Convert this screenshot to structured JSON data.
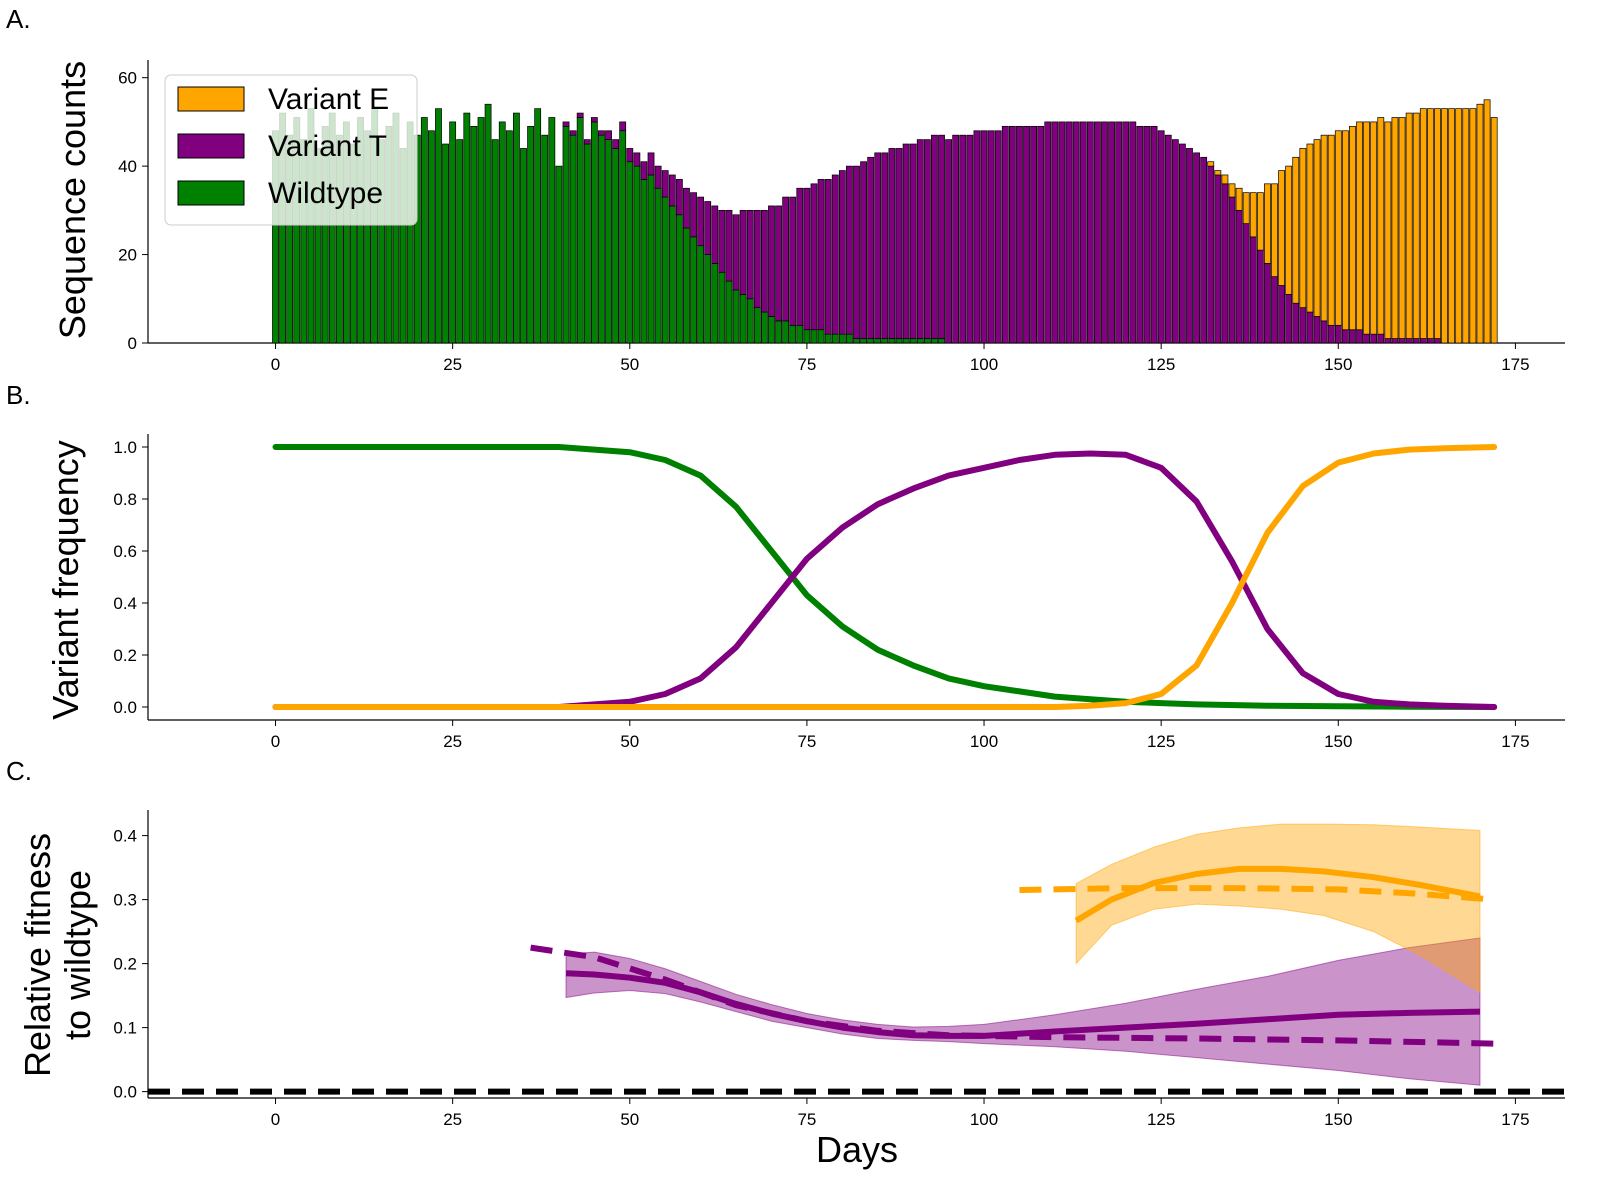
{
  "colors": {
    "variant_e": "#ffa500",
    "variant_t": "#800080",
    "wildtype": "#008000",
    "baseline": "#000000"
  },
  "chart_data": [
    {
      "panel_label": "A.",
      "type": "bar",
      "stacked": true,
      "ylabel": "Sequence counts",
      "xlim": [
        -18,
        182
      ],
      "ylim": [
        0,
        64
      ],
      "xticks": [
        0,
        25,
        50,
        75,
        100,
        125,
        150,
        175
      ],
      "yticks": [
        0,
        20,
        40,
        60
      ],
      "legend": {
        "position": "top-left",
        "entries": [
          "Variant E",
          "Variant T",
          "Wildtype"
        ]
      },
      "x": [
        0,
        1,
        2,
        3,
        4,
        5,
        6,
        7,
        8,
        9,
        10,
        11,
        12,
        13,
        14,
        15,
        16,
        17,
        18,
        19,
        20,
        21,
        22,
        23,
        24,
        25,
        26,
        27,
        28,
        29,
        30,
        31,
        32,
        33,
        34,
        35,
        36,
        37,
        38,
        39,
        40,
        41,
        42,
        43,
        44,
        45,
        46,
        47,
        48,
        49,
        50,
        51,
        52,
        53,
        54,
        55,
        56,
        57,
        58,
        59,
        60,
        61,
        62,
        63,
        64,
        65,
        66,
        67,
        68,
        69,
        70,
        71,
        72,
        73,
        74,
        75,
        76,
        77,
        78,
        79,
        80,
        81,
        82,
        83,
        84,
        85,
        86,
        87,
        88,
        89,
        90,
        91,
        92,
        93,
        94,
        95,
        96,
        97,
        98,
        99,
        100,
        101,
        102,
        103,
        104,
        105,
        106,
        107,
        108,
        109,
        110,
        111,
        112,
        113,
        114,
        115,
        116,
        117,
        118,
        119,
        120,
        121,
        122,
        123,
        124,
        125,
        126,
        127,
        128,
        129,
        130,
        131,
        132,
        133,
        134,
        135,
        136,
        137,
        138,
        139,
        140,
        141,
        142,
        143,
        144,
        145,
        146,
        147,
        148,
        149,
        150,
        151,
        152,
        153,
        154,
        155,
        156,
        157,
        158,
        159,
        160,
        161,
        162,
        163,
        164,
        165,
        166,
        167,
        168,
        169,
        170,
        171,
        172
      ],
      "series": [
        {
          "name": "Variant E",
          "values": [
            0,
            0,
            0,
            0,
            0,
            0,
            0,
            0,
            0,
            0,
            0,
            0,
            0,
            0,
            0,
            0,
            0,
            0,
            0,
            0,
            0,
            0,
            0,
            0,
            0,
            0,
            0,
            0,
            0,
            0,
            0,
            0,
            0,
            0,
            0,
            0,
            0,
            0,
            0,
            0,
            0,
            0,
            0,
            0,
            0,
            0,
            0,
            0,
            0,
            0,
            0,
            0,
            0,
            0,
            0,
            0,
            0,
            0,
            0,
            0,
            0,
            0,
            0,
            0,
            0,
            0,
            0,
            0,
            0,
            0,
            0,
            0,
            0,
            0,
            0,
            0,
            0,
            0,
            0,
            0,
            0,
            0,
            0,
            0,
            0,
            0,
            0,
            0,
            0,
            0,
            0,
            0,
            0,
            0,
            0,
            0,
            0,
            0,
            0,
            0,
            0,
            0,
            0,
            0,
            0,
            0,
            0,
            0,
            0,
            0,
            0,
            0,
            0,
            0,
            0,
            0,
            0,
            0,
            0,
            0,
            0,
            0,
            0,
            0,
            0,
            0,
            0,
            0,
            0,
            0,
            0,
            0,
            1,
            1,
            2,
            3,
            5,
            7,
            10,
            13,
            18,
            21,
            26,
            29,
            33,
            36,
            38,
            40,
            42,
            43,
            44,
            45,
            46,
            47,
            48,
            48,
            49,
            49,
            50,
            50,
            51,
            51,
            52,
            52,
            52,
            53,
            53,
            53,
            53,
            53,
            54,
            55,
            51
          ]
        },
        {
          "name": "Variant T",
          "values": [
            0,
            0,
            0,
            0,
            0,
            0,
            0,
            0,
            0,
            0,
            0,
            0,
            0,
            0,
            0,
            0,
            0,
            0,
            0,
            0,
            0,
            0,
            0,
            0,
            0,
            0,
            0,
            0,
            0,
            0,
            0,
            0,
            0,
            0,
            0,
            0,
            0,
            0,
            0,
            0,
            0,
            1,
            1,
            1,
            1,
            1,
            1,
            2,
            2,
            2,
            3,
            3,
            4,
            5,
            5,
            6,
            7,
            8,
            9,
            10,
            11,
            12,
            13,
            14,
            16,
            17,
            19,
            20,
            22,
            23,
            25,
            26,
            28,
            29,
            31,
            32,
            33,
            34,
            35,
            36,
            37,
            38,
            39,
            40,
            41,
            42,
            42,
            43,
            43,
            44,
            44,
            45,
            45,
            46,
            46,
            46,
            47,
            47,
            47,
            48,
            48,
            48,
            48,
            49,
            49,
            49,
            49,
            49,
            49,
            50,
            50,
            50,
            50,
            50,
            50,
            50,
            50,
            50,
            50,
            50,
            50,
            50,
            49,
            49,
            49,
            48,
            47,
            46,
            45,
            44,
            43,
            42,
            40,
            38,
            36,
            33,
            30,
            27,
            24,
            21,
            18,
            15,
            13,
            11,
            9,
            8,
            7,
            6,
            5,
            4,
            4,
            3,
            3,
            3,
            2,
            2,
            2,
            1,
            1,
            1,
            1,
            1,
            1,
            1,
            1,
            0,
            0,
            0,
            0,
            0,
            0,
            0,
            0
          ]
        },
        {
          "name": "Wildtype",
          "values": [
            48,
            52,
            47,
            51,
            46,
            53,
            44,
            49,
            52,
            47,
            50,
            45,
            51,
            48,
            53,
            46,
            49,
            52,
            44,
            50,
            47,
            51,
            48,
            53,
            45,
            50,
            46,
            52,
            49,
            51,
            54,
            46,
            50,
            48,
            52,
            44,
            49,
            53,
            47,
            51,
            40,
            49,
            47,
            51,
            45,
            50,
            47,
            46,
            44,
            48,
            41,
            40,
            37,
            38,
            35,
            33,
            31,
            29,
            26,
            24,
            22,
            20,
            18,
            16,
            14,
            12,
            11,
            10,
            8,
            7,
            6,
            5,
            5,
            4,
            4,
            3,
            3,
            3,
            2,
            2,
            2,
            2,
            1,
            1,
            1,
            1,
            1,
            1,
            1,
            1,
            1,
            1,
            1,
            1,
            1,
            0,
            0,
            0,
            0,
            0,
            0,
            0,
            0,
            0,
            0,
            0,
            0,
            0,
            0,
            0,
            0,
            0,
            0,
            0,
            0,
            0,
            0,
            0,
            0,
            0,
            0,
            0,
            0,
            0,
            0,
            0,
            0,
            0,
            0,
            0,
            0,
            0,
            0,
            0,
            0,
            0,
            0,
            0,
            0,
            0,
            0,
            0,
            0,
            0,
            0,
            0,
            0,
            0,
            0,
            0,
            0,
            0,
            0,
            0,
            0,
            0,
            0,
            0,
            0,
            0,
            0,
            0,
            0,
            0,
            0,
            0,
            0,
            0,
            0,
            0,
            0,
            0,
            0
          ]
        }
      ]
    },
    {
      "panel_label": "B.",
      "type": "line",
      "ylabel": "Variant frequency",
      "xlim": [
        -18,
        182
      ],
      "ylim": [
        -0.05,
        1.05
      ],
      "xticks": [
        0,
        25,
        50,
        75,
        100,
        125,
        150,
        175
      ],
      "yticks": [
        0.0,
        0.2,
        0.4,
        0.6,
        0.8,
        1.0
      ],
      "series": [
        {
          "color_key": "wildtype",
          "x": [
            0,
            20,
            40,
            45,
            50,
            55,
            60,
            65,
            70,
            75,
            80,
            85,
            90,
            95,
            100,
            105,
            110,
            115,
            120,
            125,
            130,
            140,
            150,
            160,
            172
          ],
          "values": [
            1.0,
            1.0,
            1.0,
            0.99,
            0.98,
            0.95,
            0.89,
            0.77,
            0.6,
            0.43,
            0.31,
            0.22,
            0.16,
            0.11,
            0.08,
            0.06,
            0.04,
            0.03,
            0.02,
            0.015,
            0.01,
            0.005,
            0.003,
            0.001,
            0.0
          ]
        },
        {
          "color_key": "variant_t",
          "x": [
            0,
            20,
            40,
            45,
            50,
            55,
            60,
            65,
            70,
            75,
            80,
            85,
            90,
            95,
            100,
            105,
            110,
            115,
            120,
            125,
            130,
            135,
            140,
            145,
            150,
            155,
            160,
            165,
            172
          ],
          "values": [
            0.0,
            0.0,
            0.0,
            0.01,
            0.02,
            0.05,
            0.11,
            0.23,
            0.4,
            0.57,
            0.69,
            0.78,
            0.84,
            0.89,
            0.92,
            0.95,
            0.97,
            0.975,
            0.97,
            0.92,
            0.79,
            0.56,
            0.3,
            0.13,
            0.05,
            0.02,
            0.01,
            0.005,
            0.0
          ]
        },
        {
          "color_key": "variant_e",
          "x": [
            0,
            40,
            80,
            110,
            115,
            120,
            125,
            130,
            135,
            140,
            145,
            150,
            155,
            160,
            165,
            172
          ],
          "values": [
            0.0,
            0.0,
            0.0,
            0.0,
            0.005,
            0.015,
            0.05,
            0.16,
            0.4,
            0.67,
            0.85,
            0.94,
            0.975,
            0.99,
            0.995,
            1.0
          ]
        }
      ]
    },
    {
      "panel_label": "C.",
      "type": "line",
      "ylabel": "Relative fitness to wildtype",
      "xlabel": "Days",
      "xlim": [
        -18,
        182
      ],
      "ylim": [
        -0.01,
        0.44
      ],
      "xticks": [
        0,
        25,
        50,
        75,
        100,
        125,
        150,
        175
      ],
      "yticks": [
        0.0,
        0.1,
        0.2,
        0.3,
        0.4
      ],
      "series": [
        {
          "color_key": "variant_t",
          "style": "solid",
          "x": [
            41,
            45,
            50,
            55,
            60,
            65,
            70,
            75,
            80,
            85,
            90,
            95,
            100,
            110,
            120,
            130,
            140,
            150,
            160,
            170
          ],
          "values": [
            0.185,
            0.183,
            0.178,
            0.17,
            0.155,
            0.137,
            0.122,
            0.11,
            0.1,
            0.093,
            0.088,
            0.087,
            0.087,
            0.094,
            0.1,
            0.106,
            0.113,
            0.12,
            0.123,
            0.125
          ],
          "band_low": [
            0.147,
            0.154,
            0.158,
            0.153,
            0.14,
            0.125,
            0.11,
            0.1,
            0.09,
            0.083,
            0.08,
            0.078,
            0.075,
            0.07,
            0.063,
            0.053,
            0.043,
            0.033,
            0.02,
            0.01
          ],
          "band_high": [
            0.215,
            0.218,
            0.208,
            0.192,
            0.172,
            0.152,
            0.136,
            0.122,
            0.112,
            0.105,
            0.101,
            0.102,
            0.105,
            0.12,
            0.138,
            0.16,
            0.18,
            0.205,
            0.225,
            0.24
          ]
        },
        {
          "color_key": "variant_t",
          "style": "dashed",
          "x": [
            36,
            45,
            55,
            65,
            75,
            85,
            95,
            110,
            130,
            150,
            172
          ],
          "values": [
            0.225,
            0.21,
            0.175,
            0.135,
            0.11,
            0.095,
            0.088,
            0.085,
            0.083,
            0.08,
            0.075
          ]
        },
        {
          "color_key": "variant_e",
          "style": "solid",
          "x": [
            113,
            118,
            124,
            130,
            136,
            142,
            148,
            155,
            162,
            170
          ],
          "values": [
            0.267,
            0.3,
            0.326,
            0.34,
            0.348,
            0.348,
            0.344,
            0.335,
            0.322,
            0.305
          ],
          "band_low": [
            0.2,
            0.26,
            0.285,
            0.293,
            0.29,
            0.285,
            0.275,
            0.25,
            0.21,
            0.155
          ],
          "band_high": [
            0.325,
            0.355,
            0.382,
            0.402,
            0.412,
            0.418,
            0.418,
            0.417,
            0.413,
            0.408
          ]
        },
        {
          "color_key": "variant_e",
          "style": "dashed",
          "x": [
            105,
            120,
            135,
            150,
            160,
            172
          ],
          "values": [
            0.315,
            0.318,
            0.318,
            0.316,
            0.31,
            0.3
          ]
        },
        {
          "color_key": "baseline",
          "style": "dashed",
          "x": [
            -18,
            182
          ],
          "values": [
            0.0,
            0.0
          ]
        }
      ]
    }
  ]
}
